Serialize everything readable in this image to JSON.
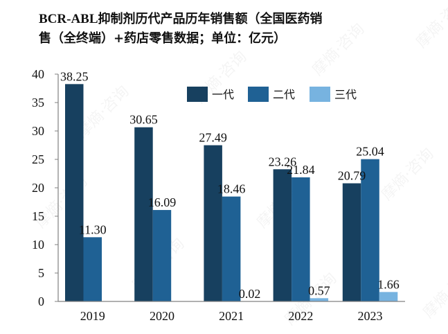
{
  "title": {
    "line1_latin": "BCR-ABL",
    "line1_cjk": "抑制剂历代产品历年销售额（全国医药销",
    "line2": "售（全终端）+药店零售数据；单位：亿元）"
  },
  "watermark": "摩熵·咨询",
  "chart_data": {
    "type": "bar",
    "title": "BCR-ABL抑制剂历代产品历年销售额（全国医药销售（全终端）+药店零售数据；单位：亿元）",
    "xlabel": "",
    "ylabel": "",
    "unit": "亿元",
    "categories": [
      "2019",
      "2020",
      "2021",
      "2022",
      "2023"
    ],
    "series": [
      {
        "name": "一代",
        "color": "#17405f",
        "values": [
          38.25,
          30.65,
          27.49,
          23.26,
          20.79
        ],
        "labels": [
          "38.25",
          "30.65",
          "27.49",
          "23.26",
          "20.79"
        ]
      },
      {
        "name": "二代",
        "color": "#1f6194",
        "values": [
          11.3,
          16.09,
          18.46,
          21.84,
          25.04
        ],
        "labels": [
          "11.30",
          "16.09",
          "18.46",
          "21.84",
          "25.04"
        ]
      },
      {
        "name": "三代",
        "color": "#77b3e0",
        "values": [
          null,
          null,
          0.02,
          0.57,
          1.66
        ],
        "labels": [
          null,
          null,
          "0.02",
          "0.57",
          "1.66"
        ]
      }
    ],
    "ylim": [
      0,
      40
    ],
    "yticks": [
      0,
      5,
      10,
      15,
      20,
      25,
      30,
      35,
      40
    ],
    "grid": false,
    "legend_position": "top-right"
  }
}
